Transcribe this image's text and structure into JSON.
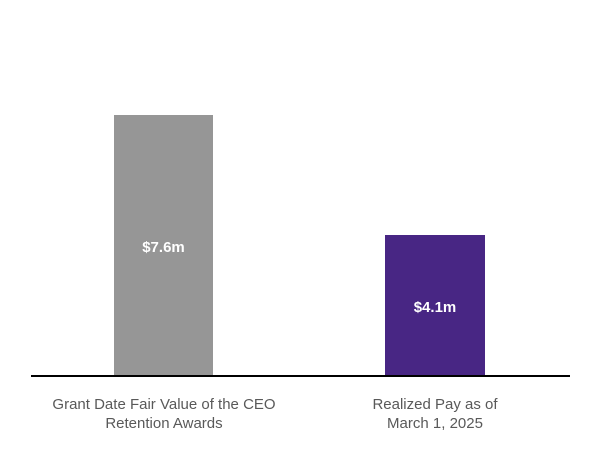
{
  "background_color": "#ffffff",
  "chart_data": {
    "type": "bar",
    "title": "",
    "xlabel": "",
    "ylabel": "",
    "categories": [
      "Grant Date Fair Value of the CEO\nRetention Awards",
      "Realized Pay as of\nMarch 1, 2025"
    ],
    "values": [
      7.6,
      4.1
    ],
    "value_labels": [
      "$7.6m",
      "$4.1m"
    ],
    "value_unit": "millions USD",
    "colors": [
      "#969696",
      "#482684"
    ],
    "value_label_color": "#ffffff",
    "category_label_color": "#595959",
    "axis_line_color": "#000000",
    "ylim": [
      0,
      7.6
    ],
    "grid": false,
    "legend": false,
    "y_axis_shown": false,
    "x_axis_shown": true
  }
}
